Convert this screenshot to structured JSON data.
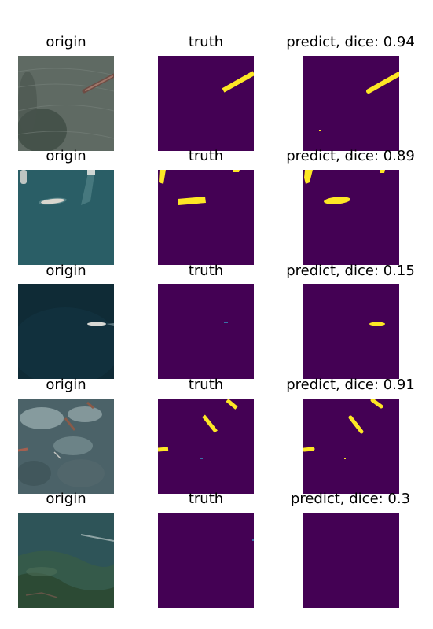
{
  "figure": {
    "column_titles": {
      "origin": "origin",
      "truth": "truth"
    },
    "mask_colors": {
      "background": "#440154",
      "foreground": "#fde725",
      "partial": "#3b6fa6"
    },
    "rows": [
      {
        "predict_label": "predict, dice: 0.94"
      },
      {
        "predict_label": "predict, dice: 0.89"
      },
      {
        "predict_label": "predict, dice: 0.15"
      },
      {
        "predict_label": "predict, dice: 0.91"
      },
      {
        "predict_label": "predict, dice: 0.3"
      }
    ]
  }
}
